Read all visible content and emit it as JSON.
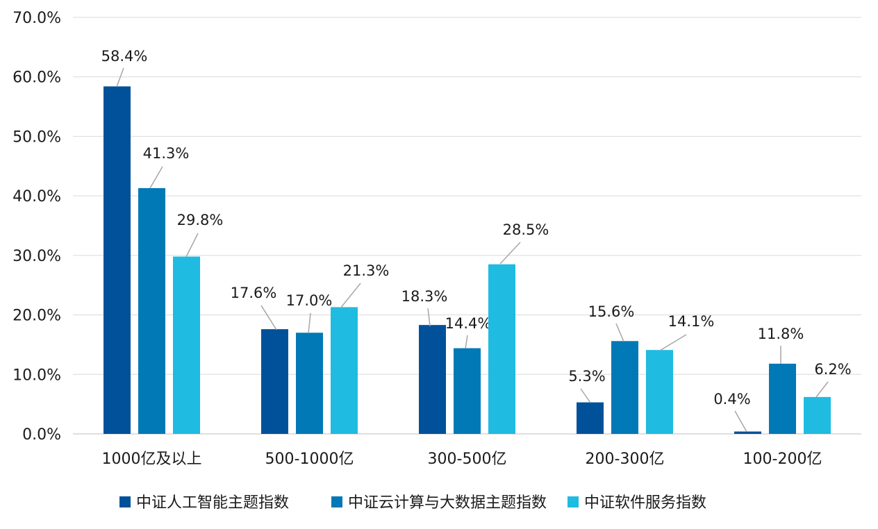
{
  "chart_data": {
    "type": "bar",
    "title": "",
    "xlabel": "",
    "ylabel": "",
    "ylim": [
      0,
      70
    ],
    "yticks": [
      "0.0%",
      "10.0%",
      "20.0%",
      "30.0%",
      "40.0%",
      "50.0%",
      "60.0%",
      "70.0%"
    ],
    "grid": true,
    "legend_position": "bottom",
    "categories": [
      "1000亿及以上",
      "500-1000亿",
      "300-500亿",
      "200-300亿",
      "100-200亿"
    ],
    "series": [
      {
        "name": "中证人工智能主题指数",
        "color": "#00519a",
        "values": [
          58.4,
          17.6,
          18.3,
          5.3,
          0.4
        ],
        "labels": [
          "58.4%",
          "17.6%",
          "18.3%",
          "5.3%",
          "0.4%"
        ]
      },
      {
        "name": "中证云计算与大数据主题指数",
        "color": "#0079b6",
        "values": [
          41.3,
          17.0,
          14.4,
          15.6,
          11.8
        ],
        "labels": [
          "41.3%",
          "17.0%",
          "14.4%",
          "15.6%",
          "11.8%"
        ]
      },
      {
        "name": "中证软件服务指数",
        "color": "#1fbbe1",
        "values": [
          29.8,
          21.3,
          28.5,
          14.1,
          6.2
        ],
        "labels": [
          "29.8%",
          "21.3%",
          "28.5%",
          "14.1%",
          "6.2%"
        ]
      }
    ]
  }
}
